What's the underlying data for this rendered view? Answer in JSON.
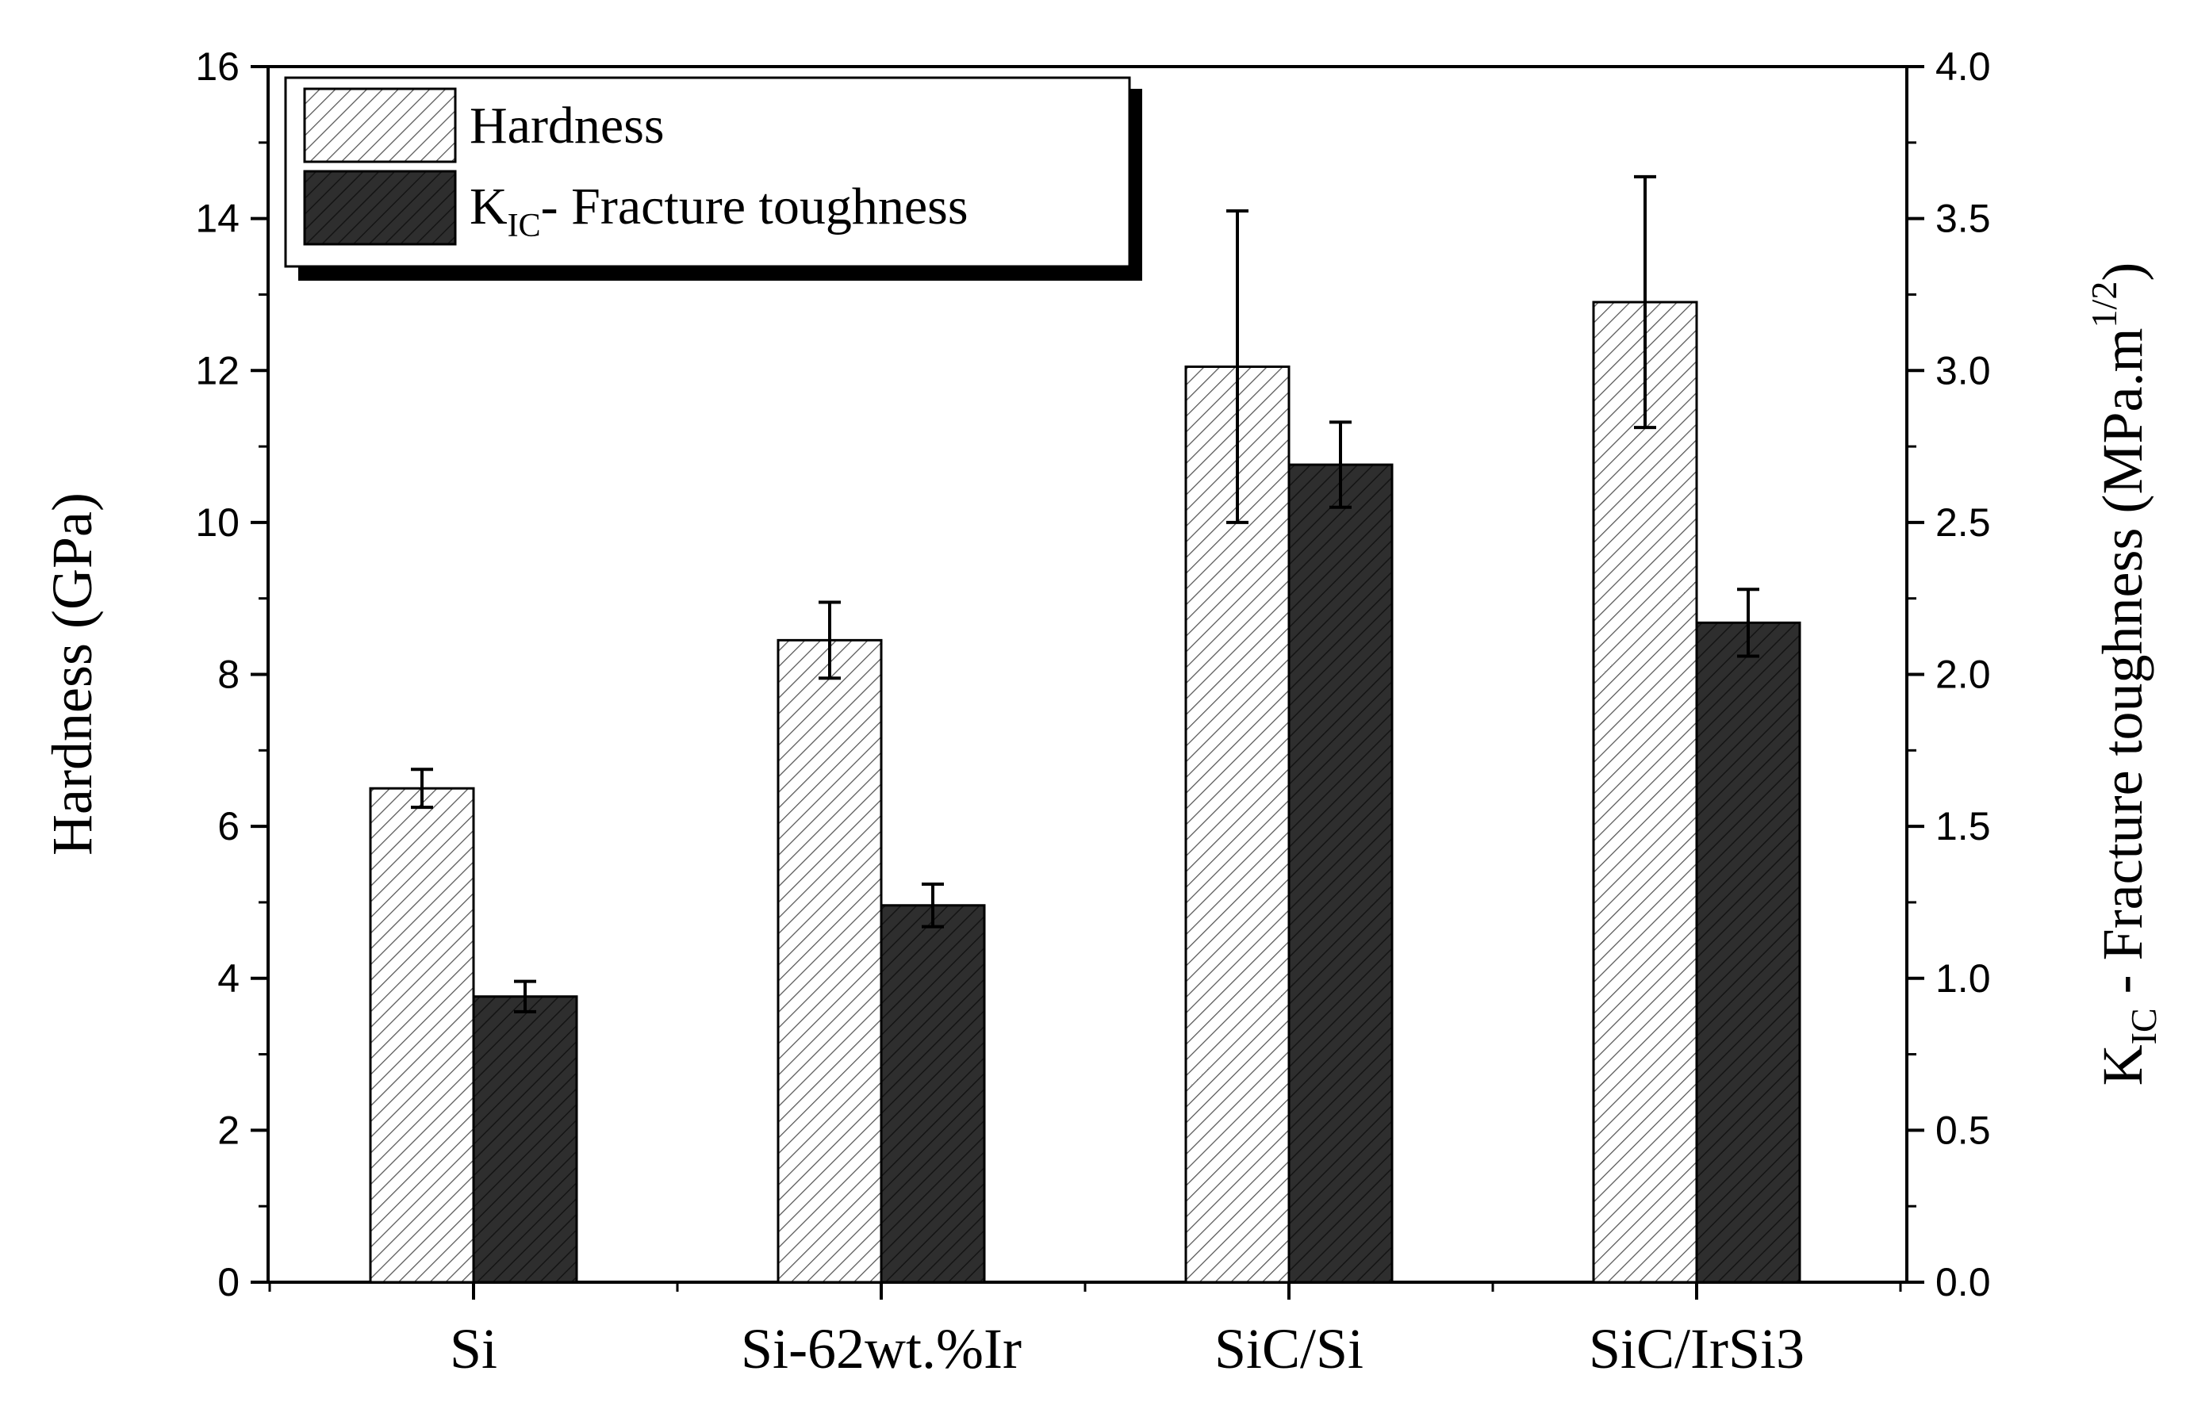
{
  "chart_data": {
    "type": "bar",
    "categories": [
      "Si",
      "Si-62wt.%Ir",
      "SiC/Si",
      "SiC/IrSi3"
    ],
    "series": [
      {
        "name": "Hardness",
        "axis": "left",
        "values": [
          6.5,
          8.45,
          12.05,
          12.9
        ],
        "error": [
          0.25,
          0.5,
          2.05,
          1.65
        ],
        "fill": "hatched-light"
      },
      {
        "name": "K_IC - Fracture toughness",
        "axis": "right",
        "values": [
          0.94,
          1.24,
          2.69,
          2.17
        ],
        "error": [
          0.05,
          0.07,
          0.14,
          0.11
        ],
        "fill": "hatched-dark"
      }
    ],
    "y_left": {
      "label": "Hardness (GPa)",
      "lim": [
        0,
        16
      ],
      "ticks": [
        "0",
        "2",
        "4",
        "6",
        "8",
        "10",
        "12",
        "14",
        "16"
      ]
    },
    "y_right": {
      "label_main": "K",
      "label_sub": "IC",
      "label_rest": " - Fracture toughness (MPa.m",
      "label_sup": "1/2",
      "label_end": ")",
      "lim": [
        0,
        4
      ],
      "ticks": [
        "0.0",
        "0.5",
        "1.0",
        "1.5",
        "2.0",
        "2.5",
        "3.0",
        "3.5",
        "4.0"
      ]
    },
    "legend": {
      "position": "top-left",
      "hardness": "Hardness",
      "kic_main": "K",
      "kic_sub": "IC",
      "kic_rest": "- Fracture toughness"
    },
    "colors": {
      "light_bar_bg": "#ffffff",
      "light_hatch": "#555555",
      "dark_bar_bg": "#2e2e2e",
      "dark_hatch": "#141414",
      "axis": "#000000"
    }
  }
}
